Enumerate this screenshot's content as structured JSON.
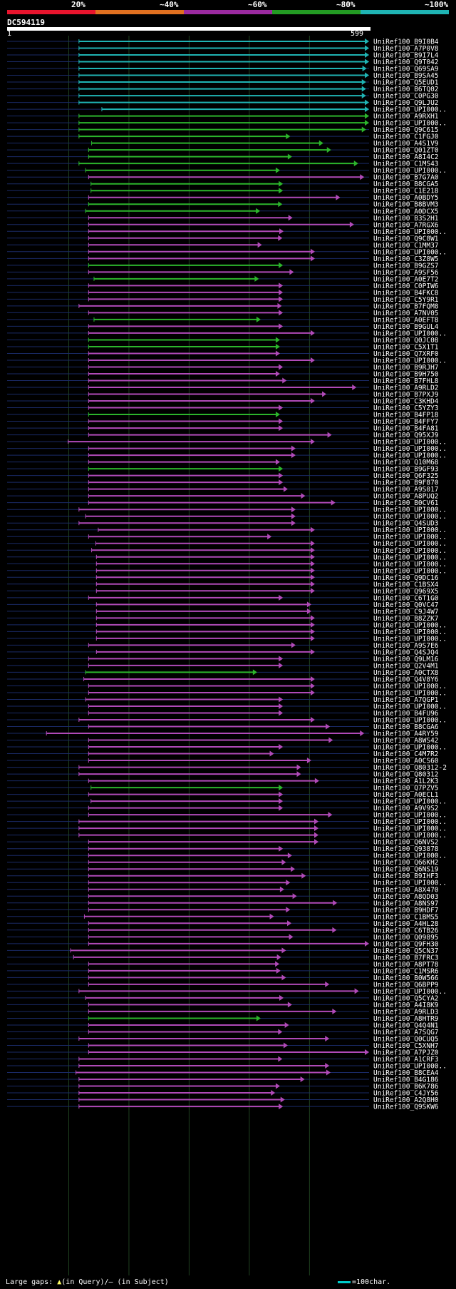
{
  "legend": [
    {
      "label": "20%",
      "color": "#e8142d"
    },
    {
      "label": "~40%",
      "color": "#e07020"
    },
    {
      "label": "~60%",
      "color": "#9b2aa0"
    },
    {
      "label": "~80%",
      "color": "#239b23"
    },
    {
      "label": "~100%",
      "color": "#1fb4b4"
    }
  ],
  "query": {
    "id": "DC594119",
    "start": "1",
    "end": "599"
  },
  "footer": {
    "prefix": "Large gaps: ",
    "triangle": "▲",
    "suffix": "(in Query)/– (in Subject)",
    "scale": "=100char."
  },
  "chart_data": {
    "type": "alignment",
    "query_length": 599,
    "hits": [
      {
        "name": "UniRef100_B9I0B4",
        "start": 117,
        "end": 599,
        "identity": 100
      },
      {
        "name": "UniRef100_A7P0V8",
        "start": 117,
        "end": 599,
        "identity": 100
      },
      {
        "name": "UniRef100_B9I7L4",
        "start": 117,
        "end": 599,
        "identity": 100
      },
      {
        "name": "UniRef100_Q9T042",
        "start": 117,
        "end": 599,
        "identity": 100
      },
      {
        "name": "UniRef100_Q69SA9",
        "start": 117,
        "end": 595,
        "identity": 100
      },
      {
        "name": "UniRef100_B9SA45",
        "start": 117,
        "end": 599,
        "identity": 100
      },
      {
        "name": "UniRef100_Q5EUD1",
        "start": 117,
        "end": 594,
        "identity": 100
      },
      {
        "name": "UniRef100_B6TQ02",
        "start": 117,
        "end": 594,
        "identity": 100
      },
      {
        "name": "UniRef100_C0PG30",
        "start": 117,
        "end": 594,
        "identity": 100
      },
      {
        "name": "UniRef100_Q9LJU2",
        "start": 117,
        "end": 599,
        "identity": 100
      },
      {
        "name": "UniRef100_UPI000..",
        "start": 155,
        "end": 599,
        "identity": 100
      },
      {
        "name": "UniRef100_A9RXH1",
        "start": 117,
        "end": 599,
        "identity": 80
      },
      {
        "name": "UniRef100_UPI000..",
        "start": 117,
        "end": 599,
        "identity": 80
      },
      {
        "name": "UniRef100_Q9C615",
        "start": 117,
        "end": 594,
        "identity": 80
      },
      {
        "name": "UniRef100_C1FGJ0",
        "start": 117,
        "end": 468,
        "identity": 80
      },
      {
        "name": "UniRef100_A4S1V9",
        "start": 138,
        "end": 523,
        "identity": 80
      },
      {
        "name": "UniRef100_Q01ZT0",
        "start": 133,
        "end": 536,
        "identity": 80
      },
      {
        "name": "UniRef100_A8I4C2",
        "start": 133,
        "end": 471,
        "identity": 80
      },
      {
        "name": "UniRef100_C1MS43",
        "start": 117,
        "end": 581,
        "identity": 80
      },
      {
        "name": "UniRef100_UPI000..",
        "start": 128,
        "end": 451,
        "identity": 80
      },
      {
        "name": "UniRef100_B7G7A0",
        "start": 133,
        "end": 591,
        "identity": 60
      },
      {
        "name": "UniRef100_B8CGA5",
        "start": 137,
        "end": 456,
        "identity": 80
      },
      {
        "name": "UniRef100_C1E218",
        "start": 137,
        "end": 456,
        "identity": 80
      },
      {
        "name": "UniRef100_A0BDY5",
        "start": 133,
        "end": 551,
        "identity": 60
      },
      {
        "name": "UniRef100_B8BVM3",
        "start": 133,
        "end": 455,
        "identity": 80
      },
      {
        "name": "UniRef100_A0DCX5",
        "start": 128,
        "end": 418,
        "identity": 80
      },
      {
        "name": "UniRef100_B3S2H1",
        "start": 133,
        "end": 472,
        "identity": 60
      },
      {
        "name": "UniRef100_A7RGX6",
        "start": 133,
        "end": 574,
        "identity": 60
      },
      {
        "name": "UniRef100_UPI000..",
        "start": 133,
        "end": 457,
        "identity": 60
      },
      {
        "name": "UniRef100_Q9C8W1",
        "start": 133,
        "end": 455,
        "identity": 60
      },
      {
        "name": "UniRef100_C1MM37",
        "start": 133,
        "end": 421,
        "identity": 60
      },
      {
        "name": "UniRef100_UPI000..",
        "start": 133,
        "end": 509,
        "identity": 60
      },
      {
        "name": "UniRef100_C3Z8W5",
        "start": 133,
        "end": 509,
        "identity": 60
      },
      {
        "name": "UniRef100_B9GZS7",
        "start": 133,
        "end": 456,
        "identity": 80
      },
      {
        "name": "UniRef100_A9SF56",
        "start": 133,
        "end": 474,
        "identity": 60
      },
      {
        "name": "UniRef100_A0E7T2",
        "start": 142,
        "end": 416,
        "identity": 80
      },
      {
        "name": "UniRef100_C0PIW6",
        "start": 133,
        "end": 456,
        "identity": 60
      },
      {
        "name": "UniRef100_B4FKC8",
        "start": 133,
        "end": 456,
        "identity": 60
      },
      {
        "name": "UniRef100_C5Y9R1",
        "start": 133,
        "end": 456,
        "identity": 60
      },
      {
        "name": "UniRef100_B7FQM8",
        "start": 117,
        "end": 454,
        "identity": 60
      },
      {
        "name": "UniRef100_A7NV05",
        "start": 133,
        "end": 456,
        "identity": 60
      },
      {
        "name": "UniRef100_A0EFT8",
        "start": 142,
        "end": 419,
        "identity": 80
      },
      {
        "name": "UniRef100_B9GUL4",
        "start": 133,
        "end": 456,
        "identity": 60
      },
      {
        "name": "UniRef100_UPI000..",
        "start": 133,
        "end": 509,
        "identity": 60
      },
      {
        "name": "UniRef100_Q0JC08",
        "start": 133,
        "end": 451,
        "identity": 80
      },
      {
        "name": "UniRef100_C5X1T1",
        "start": 133,
        "end": 451,
        "identity": 80
      },
      {
        "name": "UniRef100_Q7XRF0",
        "start": 133,
        "end": 451,
        "identity": 60
      },
      {
        "name": "UniRef100_UPI000..",
        "start": 133,
        "end": 509,
        "identity": 60
      },
      {
        "name": "UniRef100_B9RJH7",
        "start": 133,
        "end": 456,
        "identity": 60
      },
      {
        "name": "UniRef100_B9H750",
        "start": 133,
        "end": 451,
        "identity": 60
      },
      {
        "name": "UniRef100_B7FHL8",
        "start": 133,
        "end": 462,
        "identity": 60
      },
      {
        "name": "UniRef100_A9RLD2",
        "start": 133,
        "end": 578,
        "identity": 60
      },
      {
        "name": "UniRef100_B7PXJ9",
        "start": 133,
        "end": 528,
        "identity": 60
      },
      {
        "name": "UniRef100_C3KHD4",
        "start": 133,
        "end": 509,
        "identity": 60
      },
      {
        "name": "UniRef100_C5YZY3",
        "start": 133,
        "end": 456,
        "identity": 60
      },
      {
        "name": "UniRef100_B4FP18",
        "start": 133,
        "end": 451,
        "identity": 80
      },
      {
        "name": "UniRef100_B4FFY7",
        "start": 133,
        "end": 456,
        "identity": 60
      },
      {
        "name": "UniRef100_B4FA81",
        "start": 133,
        "end": 456,
        "identity": 60
      },
      {
        "name": "UniRef100_Q95XJ9",
        "start": 133,
        "end": 537,
        "identity": 60
      },
      {
        "name": "UniRef100_UPI000..",
        "start": 99,
        "end": 509,
        "identity": 60
      },
      {
        "name": "UniRef100_UPI000..",
        "start": 133,
        "end": 477,
        "identity": 60
      },
      {
        "name": "UniRef100_UPI000..",
        "start": 133,
        "end": 477,
        "identity": 60
      },
      {
        "name": "UniRef100_Q10M68",
        "start": 133,
        "end": 451,
        "identity": 60
      },
      {
        "name": "UniRef100_B9GF93",
        "start": 133,
        "end": 456,
        "identity": 80
      },
      {
        "name": "UniRef100_Q6F325",
        "start": 133,
        "end": 456,
        "identity": 60
      },
      {
        "name": "UniRef100_B9F870",
        "start": 133,
        "end": 456,
        "identity": 60
      },
      {
        "name": "UniRef100_A9S017",
        "start": 133,
        "end": 464,
        "identity": 60
      },
      {
        "name": "UniRef100_A8PUQ2",
        "start": 133,
        "end": 493,
        "identity": 60
      },
      {
        "name": "UniRef100_B0CV61",
        "start": 133,
        "end": 543,
        "identity": 60
      },
      {
        "name": "UniRef100_UPI000..",
        "start": 117,
        "end": 477,
        "identity": 60
      },
      {
        "name": "UniRef100_UPI000..",
        "start": 128,
        "end": 477,
        "identity": 60
      },
      {
        "name": "UniRef100_Q4SUD3",
        "start": 117,
        "end": 477,
        "identity": 60
      },
      {
        "name": "UniRef100_UPI000..",
        "start": 149,
        "end": 509,
        "identity": 60
      },
      {
        "name": "UniRef100_UPI000..",
        "start": 133,
        "end": 437,
        "identity": 60
      },
      {
        "name": "UniRef100_UPI000..",
        "start": 145,
        "end": 509,
        "identity": 60
      },
      {
        "name": "UniRef100_UPI000..",
        "start": 138,
        "end": 509,
        "identity": 60
      },
      {
        "name": "UniRef100_UPI000..",
        "start": 146,
        "end": 509,
        "identity": 60
      },
      {
        "name": "UniRef100_UPI000..",
        "start": 146,
        "end": 509,
        "identity": 60
      },
      {
        "name": "UniRef100_UPI000..",
        "start": 146,
        "end": 509,
        "identity": 60
      },
      {
        "name": "UniRef100_Q9DC16",
        "start": 146,
        "end": 509,
        "identity": 60
      },
      {
        "name": "UniRef100_C1BSX4",
        "start": 146,
        "end": 509,
        "identity": 60
      },
      {
        "name": "UniRef100_Q969X5",
        "start": 146,
        "end": 509,
        "identity": 60
      },
      {
        "name": "UniRef100_C6T1G0",
        "start": 133,
        "end": 456,
        "identity": 60
      },
      {
        "name": "UniRef100_Q0VC47",
        "start": 146,
        "end": 503,
        "identity": 60
      },
      {
        "name": "UniRef100_C9J4W7",
        "start": 146,
        "end": 503,
        "identity": 60
      },
      {
        "name": "UniRef100_B8ZZK7",
        "start": 146,
        "end": 509,
        "identity": 60
      },
      {
        "name": "UniRef100_UPI000..",
        "start": 146,
        "end": 509,
        "identity": 60
      },
      {
        "name": "UniRef100_UPI000..",
        "start": 146,
        "end": 509,
        "identity": 60
      },
      {
        "name": "UniRef100_UPI000..",
        "start": 146,
        "end": 509,
        "identity": 60
      },
      {
        "name": "UniRef100_A9S7E6",
        "start": 133,
        "end": 477,
        "identity": 60
      },
      {
        "name": "UniRef100_Q4SJQ4",
        "start": 146,
        "end": 509,
        "identity": 60
      },
      {
        "name": "UniRef100_Q9LM16",
        "start": 133,
        "end": 456,
        "identity": 60
      },
      {
        "name": "UniRef100_Q2V4M1",
        "start": 133,
        "end": 456,
        "identity": 60
      },
      {
        "name": "UniRef100_A0CTX8",
        "start": 128,
        "end": 413,
        "identity": 80
      },
      {
        "name": "UniRef100_Q4V8Y6",
        "start": 125,
        "end": 509,
        "identity": 60
      },
      {
        "name": "UniRef100_UPI000..",
        "start": 133,
        "end": 509,
        "identity": 60
      },
      {
        "name": "UniRef100_UPI000..",
        "start": 133,
        "end": 509,
        "identity": 60
      },
      {
        "name": "UniRef100_A7QGP1",
        "start": 128,
        "end": 456,
        "identity": 60
      },
      {
        "name": "UniRef100_UPI000..",
        "start": 133,
        "end": 456,
        "identity": 60
      },
      {
        "name": "UniRef100_B4FU96",
        "start": 133,
        "end": 456,
        "identity": 60
      },
      {
        "name": "UniRef100_UPI000..",
        "start": 117,
        "end": 509,
        "identity": 60
      },
      {
        "name": "UniRef100_B8CGA6",
        "start": 133,
        "end": 534,
        "identity": 60
      },
      {
        "name": "UniRef100_A4RY59",
        "start": 63,
        "end": 591,
        "identity": 60
      },
      {
        "name": "UniRef100_A8WS42",
        "start": 133,
        "end": 539,
        "identity": 60
      },
      {
        "name": "UniRef100_UPI000..",
        "start": 133,
        "end": 456,
        "identity": 60
      },
      {
        "name": "UniRef100_C4M7R2",
        "start": 133,
        "end": 441,
        "identity": 60
      },
      {
        "name": "UniRef100_A0CS60",
        "start": 133,
        "end": 503,
        "identity": 60
      },
      {
        "name": "UniRef100_Q80312-2",
        "start": 117,
        "end": 486,
        "identity": 60
      },
      {
        "name": "UniRef100_Q80312",
        "start": 117,
        "end": 486,
        "identity": 60
      },
      {
        "name": "UniRef100_A1L2K3",
        "start": 133,
        "end": 516,
        "identity": 60
      },
      {
        "name": "UniRef100_Q7PZV5",
        "start": 137,
        "end": 456,
        "identity": 80
      },
      {
        "name": "UniRef100_A0ECL1",
        "start": 133,
        "end": 456,
        "identity": 60
      },
      {
        "name": "UniRef100_UPI000..",
        "start": 137,
        "end": 456,
        "identity": 60
      },
      {
        "name": "UniRef100_A9V9S2",
        "start": 133,
        "end": 456,
        "identity": 60
      },
      {
        "name": "UniRef100_UPI000..",
        "start": 133,
        "end": 538,
        "identity": 60
      },
      {
        "name": "UniRef100_UPI000..",
        "start": 117,
        "end": 515,
        "identity": 60
      },
      {
        "name": "UniRef100_UPI000..",
        "start": 117,
        "end": 515,
        "identity": 60
      },
      {
        "name": "UniRef100_UPI000..",
        "start": 117,
        "end": 515,
        "identity": 60
      },
      {
        "name": "UniRef100_Q6NVS2",
        "start": 133,
        "end": 515,
        "identity": 60
      },
      {
        "name": "UniRef100_Q93878",
        "start": 133,
        "end": 456,
        "identity": 60
      },
      {
        "name": "UniRef100_UPI000..",
        "start": 133,
        "end": 471,
        "identity": 60
      },
      {
        "name": "UniRef100_Q66KH2",
        "start": 133,
        "end": 461,
        "identity": 60
      },
      {
        "name": "UniRef100_Q6NS19",
        "start": 133,
        "end": 476,
        "identity": 60
      },
      {
        "name": "UniRef100_B9IHF3",
        "start": 133,
        "end": 494,
        "identity": 60
      },
      {
        "name": "UniRef100_UPI000..",
        "start": 133,
        "end": 468,
        "identity": 60
      },
      {
        "name": "UniRef100_A8X470",
        "start": 133,
        "end": 458,
        "identity": 60
      },
      {
        "name": "UniRef100_A8QD03",
        "start": 133,
        "end": 479,
        "identity": 60
      },
      {
        "name": "UniRef100_A8NS97",
        "start": 133,
        "end": 546,
        "identity": 60
      },
      {
        "name": "UniRef100_B9HDF7",
        "start": 133,
        "end": 468,
        "identity": 60
      },
      {
        "name": "UniRef100_C1BMS5",
        "start": 126,
        "end": 441,
        "identity": 60
      },
      {
        "name": "UniRef100_A4HL28",
        "start": 133,
        "end": 470,
        "identity": 60
      },
      {
        "name": "UniRef100_C6TB26",
        "start": 133,
        "end": 545,
        "identity": 60
      },
      {
        "name": "UniRef100_Q09895",
        "start": 133,
        "end": 473,
        "identity": 60
      },
      {
        "name": "UniRef100_Q9FH30",
        "start": 133,
        "end": 599,
        "identity": 60
      },
      {
        "name": "UniRef100_Q5CN37",
        "start": 103,
        "end": 461,
        "identity": 60
      },
      {
        "name": "UniRef100_B7FRC3",
        "start": 108,
        "end": 453,
        "identity": 60
      },
      {
        "name": "UniRef100_A8PT78",
        "start": 133,
        "end": 450,
        "identity": 60
      },
      {
        "name": "UniRef100_C1MSR6",
        "start": 133,
        "end": 452,
        "identity": 60
      },
      {
        "name": "UniRef100_B0W566",
        "start": 133,
        "end": 461,
        "identity": 60
      },
      {
        "name": "UniRef100_Q6BPP9",
        "start": 133,
        "end": 533,
        "identity": 60
      },
      {
        "name": "UniRef100_UPI000..",
        "start": 117,
        "end": 582,
        "identity": 60
      },
      {
        "name": "UniRef100_Q5CYA2",
        "start": 128,
        "end": 457,
        "identity": 60
      },
      {
        "name": "UniRef100_A4I8K9",
        "start": 133,
        "end": 471,
        "identity": 60
      },
      {
        "name": "UniRef100_A9RLD3",
        "start": 133,
        "end": 545,
        "identity": 60
      },
      {
        "name": "UniRef100_A8HTR9",
        "start": 133,
        "end": 419,
        "identity": 80
      },
      {
        "name": "UniRef100_Q4Q4N1",
        "start": 133,
        "end": 466,
        "identity": 60
      },
      {
        "name": "UniRef100_A7SQG7",
        "start": 133,
        "end": 455,
        "identity": 60
      },
      {
        "name": "UniRef100_Q0CUQ5",
        "start": 117,
        "end": 533,
        "identity": 60
      },
      {
        "name": "UniRef100_C5XNH7",
        "start": 133,
        "end": 464,
        "identity": 60
      },
      {
        "name": "UniRef100_A7PJZ0",
        "start": 133,
        "end": 599,
        "identity": 60
      },
      {
        "name": "UniRef100_A1CRF3",
        "start": 117,
        "end": 455,
        "identity": 60
      },
      {
        "name": "UniRef100_UPI000..",
        "start": 117,
        "end": 533,
        "identity": 60
      },
      {
        "name": "UniRef100_B8CEA4",
        "start": 112,
        "end": 535,
        "identity": 60
      },
      {
        "name": "UniRef100_B4G186",
        "start": 117,
        "end": 492,
        "identity": 60
      },
      {
        "name": "UniRef100_B6K786",
        "start": 117,
        "end": 451,
        "identity": 60
      },
      {
        "name": "UniRef100_C4JY56",
        "start": 117,
        "end": 443,
        "identity": 60
      },
      {
        "name": "UniRef100_A2Q8H0",
        "start": 117,
        "end": 459,
        "identity": 60
      },
      {
        "name": "UniRef100_Q9SKW6",
        "start": 117,
        "end": 456,
        "identity": 60
      }
    ]
  }
}
